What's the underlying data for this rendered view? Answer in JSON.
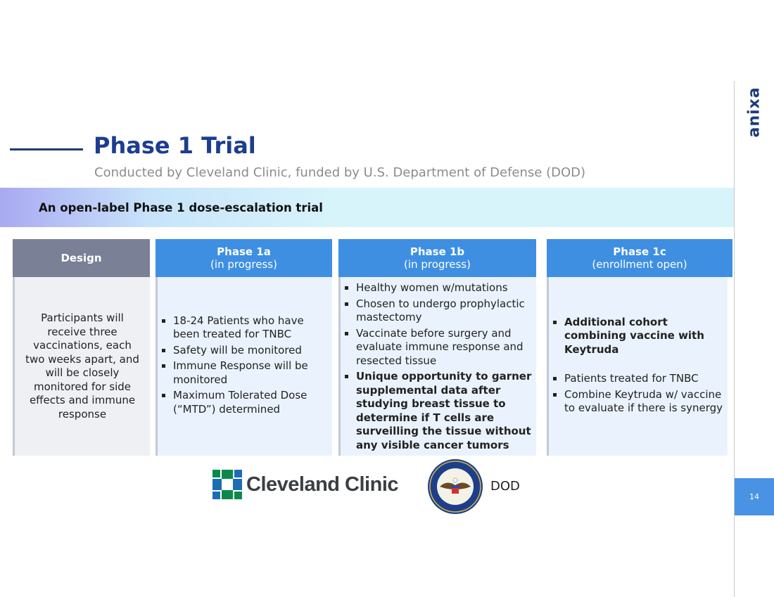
{
  "header": {
    "title": "Phase 1 Trial",
    "subtitle": "Conducted by Cleveland Clinic, funded by U.S. Department of Defense (DOD)"
  },
  "banner": "An open-label Phase 1 dose-escalation trial",
  "columns": [
    {
      "title": "Design",
      "body": "Participants will receive three vaccinations, each two weeks apart, and will be closely monitored for side effects and immune response"
    },
    {
      "title": "Phase 1a",
      "status": "(in progress)",
      "bullets": [
        {
          "text": "18-24 Patients who have been treated for TNBC",
          "bold": false
        },
        {
          "text": "Safety will be monitored",
          "bold": false
        },
        {
          "text": "Immune Response will be monitored",
          "bold": false
        },
        {
          "text": "Maximum Tolerated Dose (“MTD”) determined",
          "bold": false
        }
      ]
    },
    {
      "title": "Phase 1b",
      "status": "(in progress)",
      "bullets": [
        {
          "text": "Healthy women w/mutations",
          "bold": false
        },
        {
          "text": "Chosen to undergo prophylactic mastectomy",
          "bold": false
        },
        {
          "text": "Vaccinate before surgery and evaluate immune response  and resected tissue",
          "bold": false
        },
        {
          "text": "Unique opportunity to garner supplemental data after studying breast tissue to determine if T cells are surveilling the tissue without any visible cancer tumors",
          "bold": true
        }
      ]
    },
    {
      "title": "Phase 1c",
      "status": "(enrollment open)",
      "bullets": [
        {
          "text": "Additional cohort combining vaccine with Keytruda",
          "bold": true
        },
        {
          "text": "Patients treated for TNBC",
          "bold": false
        },
        {
          "text": "Combine Keytruda w/ vaccine to evaluate if there is synergy",
          "bold": false
        }
      ]
    }
  ],
  "logos": {
    "clinic": "Cleveland Clinic",
    "defense": "DOD"
  },
  "brand": "anixa",
  "page_number": "14"
}
